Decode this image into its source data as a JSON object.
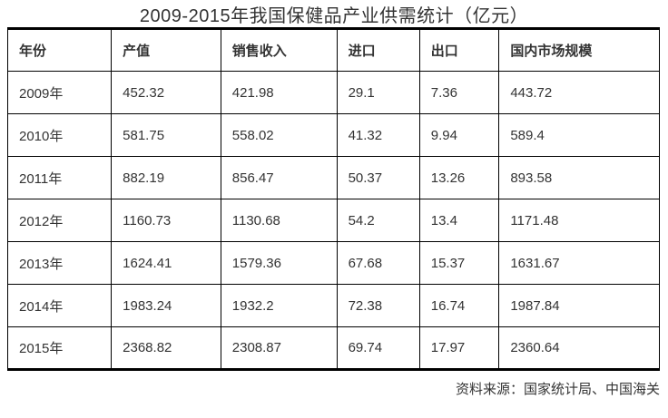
{
  "title": "2009-2015年我国保健品产业供需统计（亿元）",
  "table": {
    "columns": [
      "年份",
      "产值",
      "销售收入",
      "进口",
      "出口",
      "国内市场规模"
    ],
    "rows": [
      [
        "2009年",
        "452.32",
        "421.98",
        "29.1",
        "7.36",
        "443.72"
      ],
      [
        "2010年",
        "581.75",
        "558.02",
        "41.32",
        "9.94",
        "589.4"
      ],
      [
        "2011年",
        "882.19",
        "856.47",
        "50.37",
        "13.26",
        "893.58"
      ],
      [
        "2012年",
        "1160.73",
        "1130.68",
        "54.2",
        "13.4",
        "1171.48"
      ],
      [
        "2013年",
        "1624.41",
        "1579.36",
        "67.68",
        "15.37",
        "1631.67"
      ],
      [
        "2014年",
        "1983.24",
        "1932.2",
        "72.38",
        "16.74",
        "1987.84"
      ],
      [
        "2015年",
        "2368.82",
        "2308.87",
        "69.74",
        "17.97",
        "2360.64"
      ]
    ]
  },
  "footer": {
    "source": "资料来源：国家统计局、中国海关"
  },
  "colors": {
    "text": "#333333",
    "border": "#000000",
    "background": "#ffffff"
  },
  "chart_data": {
    "type": "table",
    "title": "2009-2015年我国保健品产业供需统计（亿元）",
    "unit": "亿元",
    "categories": [
      "2009年",
      "2010年",
      "2011年",
      "2012年",
      "2013年",
      "2014年",
      "2015年"
    ],
    "series": [
      {
        "name": "产值",
        "values": [
          452.32,
          581.75,
          882.19,
          1160.73,
          1624.41,
          1983.24,
          2368.82
        ]
      },
      {
        "name": "销售收入",
        "values": [
          421.98,
          558.02,
          856.47,
          1130.68,
          1579.36,
          1932.2,
          2308.87
        ]
      },
      {
        "name": "进口",
        "values": [
          29.1,
          41.32,
          50.37,
          54.2,
          67.68,
          72.38,
          69.74
        ]
      },
      {
        "name": "出口",
        "values": [
          7.36,
          9.94,
          13.26,
          13.4,
          15.37,
          16.74,
          17.97
        ]
      },
      {
        "name": "国内市场规模",
        "values": [
          443.72,
          589.4,
          893.58,
          1171.48,
          1631.67,
          1987.84,
          2360.64
        ]
      }
    ],
    "source_note": "资料来源：国家统计局、中国海关"
  }
}
